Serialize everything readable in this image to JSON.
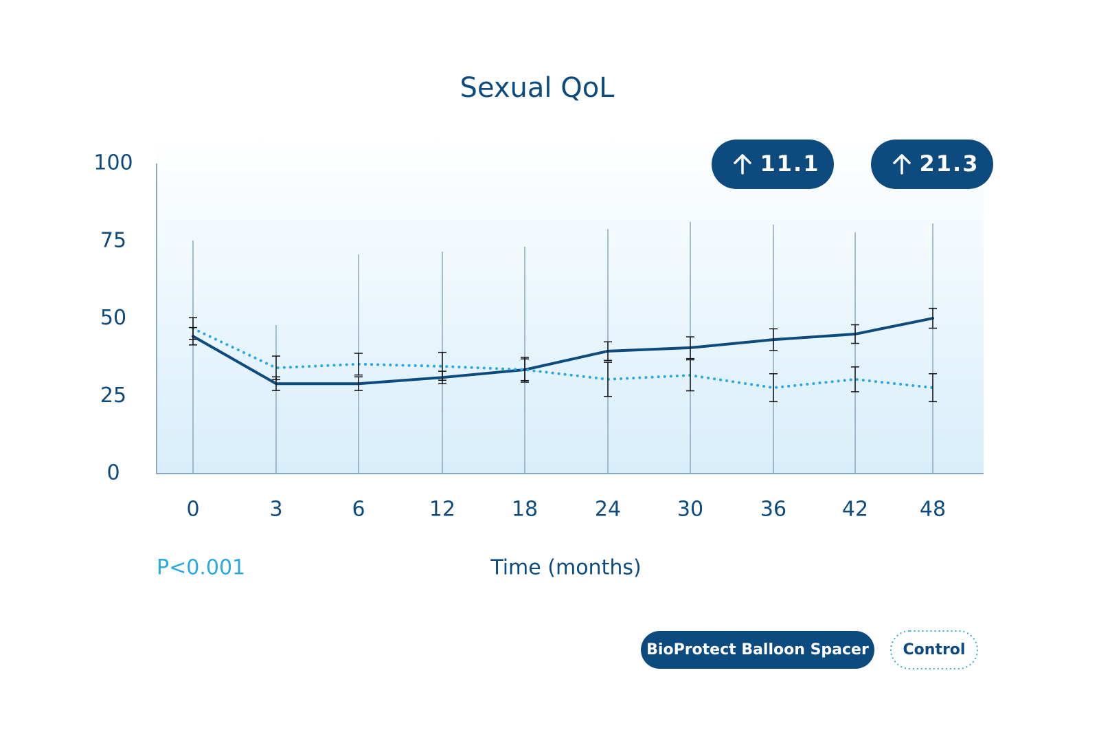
{
  "chart_data": {
    "type": "line",
    "title": "Sexual QoL",
    "x_label": "Time (months)",
    "annotation": "P<0.001",
    "categories": [
      "0",
      "3",
      "6",
      "12",
      "18",
      "24",
      "30",
      "36",
      "42",
      "48"
    ],
    "series": [
      {
        "name": "BioProtect Balloon Spacer",
        "color": "#0d4a7e",
        "style": "solid",
        "values": [
          44.3,
          29,
          29,
          31,
          33.5,
          39.5,
          40.6,
          43.2,
          45,
          50.1
        ],
        "errors": [
          2.8,
          2.2,
          2.2,
          2.0,
          3.5,
          3.0,
          3.5,
          3.5,
          3.0,
          3.2
        ]
      },
      {
        "name": "Control",
        "color": "#29a9e0",
        "style": "dotted",
        "values": [
          46.8,
          34.1,
          35.3,
          34.6,
          33.5,
          30.4,
          31.7,
          27.7,
          30.4,
          27.7
        ],
        "errors": [
          3.5,
          3.8,
          3.5,
          4.5,
          4.0,
          5.5,
          5.0,
          4.5,
          4.0,
          4.5
        ]
      }
    ],
    "range_top": [
      75.2,
      47.9,
      70.7,
      71.6,
      73.2,
      78.9,
      81.2,
      80.3,
      77.8,
      80.7
    ],
    "badges": [
      "11.1",
      "21.3"
    ],
    "ylim": [
      0,
      100
    ],
    "yticks": [
      0,
      25,
      50,
      75,
      100
    ],
    "grid": false,
    "legend": "bottom-right"
  }
}
